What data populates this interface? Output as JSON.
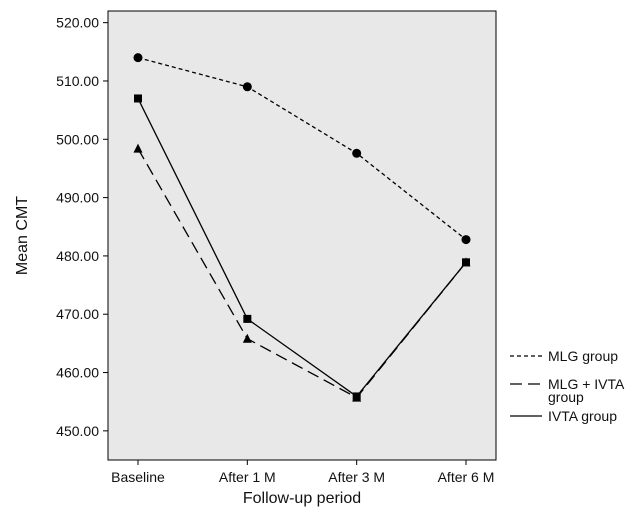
{
  "chart_data": {
    "type": "line",
    "title": "",
    "xlabel": "Follow-up period",
    "ylabel": "Mean CMT",
    "categories": [
      "Baseline",
      "After 1 M",
      "After 3 M",
      "After 6 M"
    ],
    "ylim": [
      445,
      522
    ],
    "yticks": [
      450,
      460,
      470,
      480,
      490,
      500,
      510,
      520
    ],
    "ytick_labels": [
      "450.00",
      "460.00",
      "470.00",
      "480.00",
      "490.00",
      "500.00",
      "510.00",
      "520.00"
    ],
    "grid": false,
    "plot_background": "#e8e8e8",
    "legend_position": "right",
    "series": [
      {
        "name": "MLG group",
        "values": [
          514.0,
          509.0,
          497.6,
          482.8
        ],
        "line_style": "dotted",
        "marker": "circle"
      },
      {
        "name_lines": [
          "MLG + IVTA",
          "group"
        ],
        "values": [
          498.4,
          465.8,
          455.7,
          478.9
        ],
        "line_style": "dashed",
        "marker": "triangle"
      },
      {
        "name": "IVTA group",
        "values": [
          507.0,
          469.2,
          455.9,
          478.9
        ],
        "line_style": "solid",
        "marker": "square"
      }
    ]
  }
}
